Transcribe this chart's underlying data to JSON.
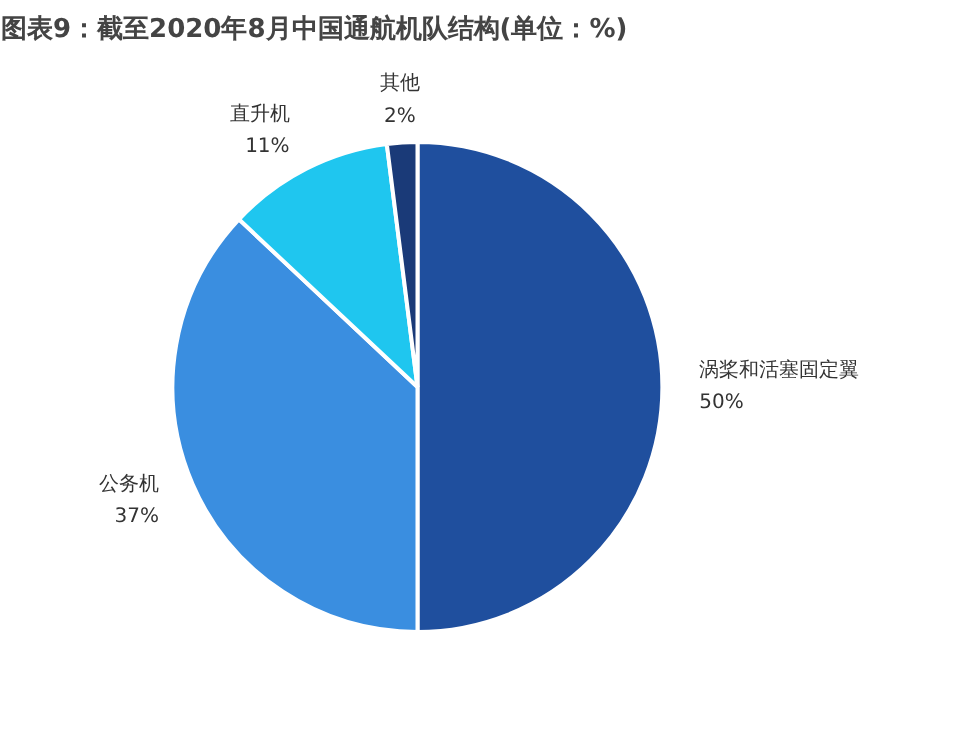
{
  "chart_data": {
    "type": "pie",
    "title": "图表9：截至2020年8月中国通航机队结构(单位：%)",
    "categories": [
      "涡桨和活塞固定翼",
      "公务机",
      "直升机",
      "其他"
    ],
    "values": [
      50,
      37,
      11,
      2
    ],
    "colors": [
      "#1f4f9e",
      "#3a8ee0",
      "#1fc6ef",
      "#1a3a78"
    ],
    "value_labels": [
      "50%",
      "37%",
      "11%",
      "2%"
    ],
    "legend": false
  }
}
